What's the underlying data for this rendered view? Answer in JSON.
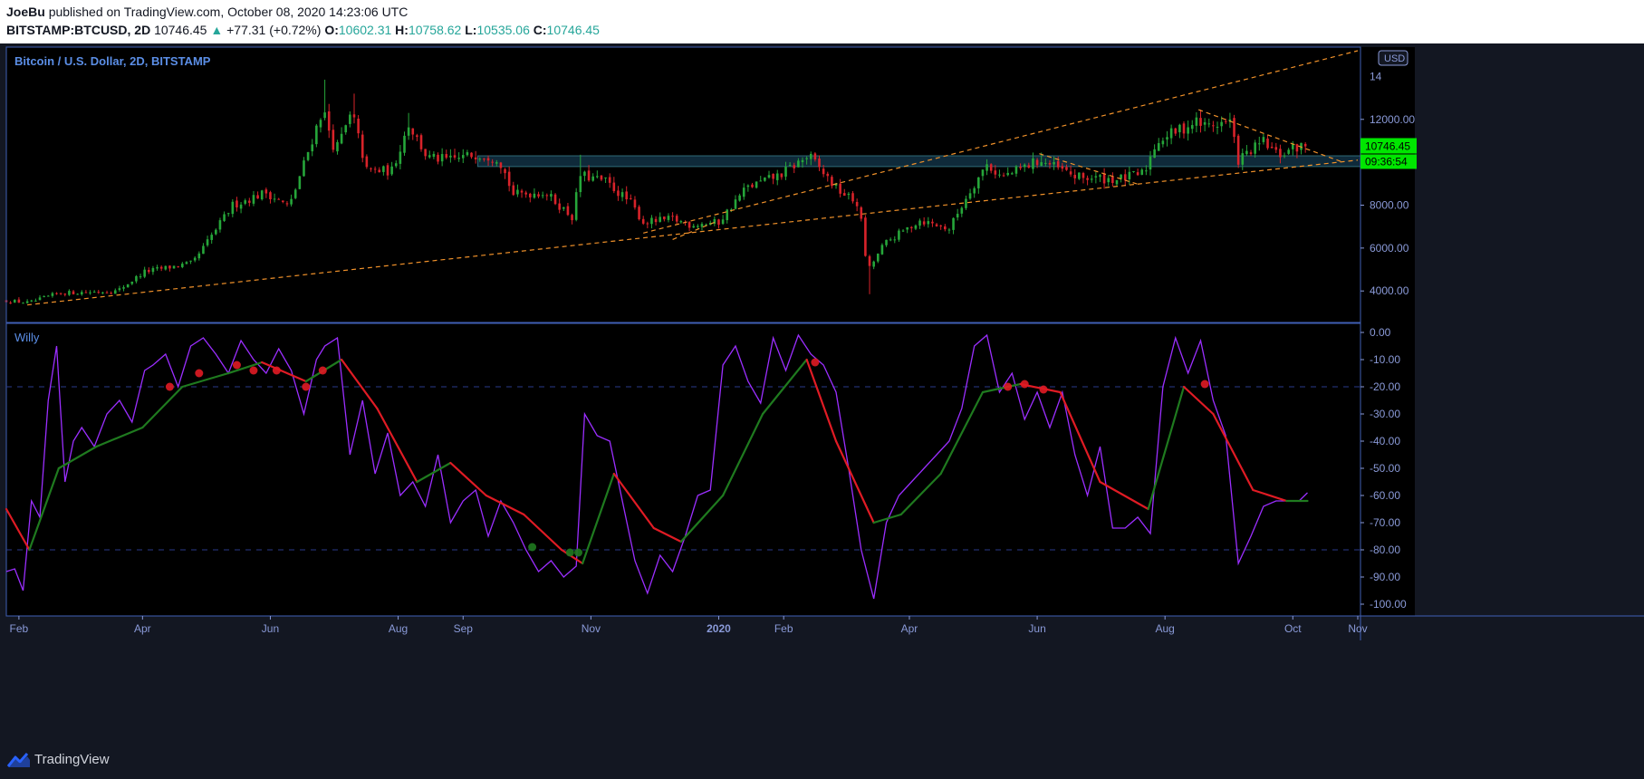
{
  "header": {
    "author": "JoeBu",
    "published": "published on TradingView.com, October 08, 2020 14:23:06 UTC",
    "symbol": "BITSTAMP:BTCUSD, 2D",
    "last": "10746.45",
    "change_arrow": "▲",
    "change": "+77.31 (+0.72%)",
    "o_label": "O:",
    "o": "10602.31",
    "h_label": "H:",
    "h": "10758.62",
    "l_label": "L:",
    "l": "10535.06",
    "c_label": "C:",
    "c": "10746.45"
  },
  "footer": {
    "brand": "TradingView",
    "logo_icon": "tradingview-logo-icon"
  },
  "colors": {
    "background": "#000000",
    "panel_border": "#3f5fb5",
    "axis_text": "#8a9ad8",
    "pane_title": "#5b8ee6",
    "candle_up": "#26a63a",
    "candle_down": "#d8232a",
    "trendline": "#f0912a",
    "zone_fill": "#0f2a3a",
    "zone_border": "#2e6a78",
    "willy_line": "#9b2eff",
    "signal_up": "#1f7a1f",
    "signal_down": "#e01b24",
    "last_price_bg": "#00e600",
    "dashed_level": "#2a3a8a"
  },
  "chart_data": [
    {
      "type": "candlestick",
      "title": "Bitcoin / U.S. Dollar, 2D, BITSTAMP",
      "currency_badge": "USD",
      "last_price_label": "10746.45",
      "countdown_label": "09:36:54",
      "y_ticks": [
        "4000.00",
        "6000.00",
        "8000.00",
        "12000.00"
      ],
      "y_top_partial": "14",
      "ylim": [
        2700,
        15200
      ],
      "x_labels": [
        "Feb",
        "Apr",
        "Jun",
        "Aug",
        "Sep",
        "Nov",
        "2020",
        "Feb",
        "Apr",
        "Jun",
        "Aug",
        "Oct",
        "Nov"
      ],
      "x_label_dates": [
        "2019-02-01",
        "2019-04-01",
        "2019-06-01",
        "2019-08-01",
        "2019-09-01",
        "2019-11-01",
        "2020-01-01",
        "2020-02-01",
        "2020-04-01",
        "2020-06-01",
        "2020-08-01",
        "2020-10-01",
        "2020-11-01"
      ],
      "x_range": [
        "2019-01-26",
        "2020-11-01"
      ],
      "bar_interval_days": 2,
      "price_anchors": [
        [
          "2019-01-26",
          3550
        ],
        [
          "2019-02-06",
          3450
        ],
        [
          "2019-02-20",
          3900
        ],
        [
          "2019-03-20",
          4000
        ],
        [
          "2019-04-02",
          4900
        ],
        [
          "2019-04-25",
          5300
        ],
        [
          "2019-05-14",
          8000
        ],
        [
          "2019-05-30",
          8600
        ],
        [
          "2019-06-10",
          7900
        ],
        [
          "2019-06-26",
          12500
        ],
        [
          "2019-07-02",
          10500
        ],
        [
          "2019-07-10",
          12300
        ],
        [
          "2019-07-17",
          9600
        ],
        [
          "2019-07-29",
          9600
        ],
        [
          "2019-08-06",
          11800
        ],
        [
          "2019-08-15",
          10200
        ],
        [
          "2019-08-26",
          10100
        ],
        [
          "2019-09-08",
          10400
        ],
        [
          "2019-09-18",
          10200
        ],
        [
          "2019-09-25",
          8500
        ],
        [
          "2019-10-10",
          8600
        ],
        [
          "2019-10-23",
          7450
        ],
        [
          "2019-10-27",
          9400
        ],
        [
          "2019-11-08",
          9100
        ],
        [
          "2019-11-20",
          8100
        ],
        [
          "2019-11-26",
          7200
        ],
        [
          "2019-12-10",
          7350
        ],
        [
          "2019-12-18",
          7100
        ],
        [
          "2020-01-01",
          7200
        ],
        [
          "2020-01-14",
          8800
        ],
        [
          "2020-01-30",
          9400
        ],
        [
          "2020-02-13",
          10300
        ],
        [
          "2020-02-26",
          8800
        ],
        [
          "2020-03-08",
          8000
        ],
        [
          "2020-03-12",
          4900
        ],
        [
          "2020-03-20",
          6200
        ],
        [
          "2020-04-06",
          7300
        ],
        [
          "2020-04-20",
          6900
        ],
        [
          "2020-04-30",
          8700
        ],
        [
          "2020-05-08",
          9900
        ],
        [
          "2020-05-15",
          9300
        ],
        [
          "2020-05-20",
          9500
        ],
        [
          "2020-06-02",
          10100
        ],
        [
          "2020-06-20",
          9300
        ],
        [
          "2020-07-10",
          9200
        ],
        [
          "2020-07-22",
          9500
        ],
        [
          "2020-07-28",
          11000
        ],
        [
          "2020-08-16",
          11900
        ],
        [
          "2020-08-20",
          11700
        ],
        [
          "2020-09-01",
          11900
        ],
        [
          "2020-09-05",
          10100
        ],
        [
          "2020-09-17",
          10950
        ],
        [
          "2020-09-24",
          10300
        ],
        [
          "2020-10-02",
          10700
        ],
        [
          "2020-10-08",
          10746
        ]
      ],
      "spikes": [
        {
          "date": "2019-06-26",
          "high": 13850
        },
        {
          "date": "2019-07-10",
          "high": 13200
        },
        {
          "date": "2019-08-06",
          "high": 12300
        },
        {
          "date": "2019-10-26",
          "high": 10350
        },
        {
          "date": "2020-02-13",
          "high": 10500
        },
        {
          "date": "2020-03-12",
          "low": 3850
        },
        {
          "date": "2020-06-02",
          "high": 10450
        },
        {
          "date": "2020-08-17",
          "high": 12450
        }
      ],
      "horizontal_zone": [
        9800,
        10300
      ],
      "trendlines": [
        {
          "from": [
            "2019-02-05",
            3350
          ],
          "to": [
            "2020-11-01",
            10100
          ]
        },
        {
          "from": [
            "2019-11-26",
            6700
          ],
          "to": [
            "2020-11-01",
            15200
          ]
        },
        {
          "from": [
            "2019-12-10",
            6400
          ],
          "to": [
            "2019-12-30",
            7200
          ]
        },
        {
          "from": [
            "2020-06-02",
            10400
          ],
          "to": [
            "2020-07-20",
            8950
          ]
        },
        {
          "from": [
            "2020-08-17",
            12450
          ],
          "to": [
            "2020-10-25",
            10000
          ]
        }
      ]
    },
    {
      "type": "line",
      "title": "Willy",
      "y_ticks": [
        "0.00",
        "-10.00",
        "-20.00",
        "-30.00",
        "-40.00",
        "-50.00",
        "-60.00",
        "-70.00",
        "-80.00",
        "-90.00",
        "-100.00"
      ],
      "ylim": [
        -103,
        2
      ],
      "levels": [
        -20,
        -80
      ],
      "series": [
        {
          "role": "oscillator",
          "x": [
            "2019-01-26",
            "2019-01-30",
            "2019-02-03",
            "2019-02-07",
            "2019-02-11",
            "2019-02-15",
            "2019-02-19",
            "2019-02-23",
            "2019-02-27",
            "2019-03-03",
            "2019-03-09",
            "2019-03-15",
            "2019-03-21",
            "2019-03-27",
            "2019-04-02",
            "2019-04-06",
            "2019-04-12",
            "2019-04-18",
            "2019-04-24",
            "2019-04-30",
            "2019-05-06",
            "2019-05-12",
            "2019-05-18",
            "2019-05-24",
            "2019-05-30",
            "2019-06-05",
            "2019-06-11",
            "2019-06-17",
            "2019-06-23",
            "2019-06-27",
            "2019-07-03",
            "2019-07-09",
            "2019-07-15",
            "2019-07-21",
            "2019-07-27",
            "2019-08-02",
            "2019-08-08",
            "2019-08-14",
            "2019-08-20",
            "2019-08-26",
            "2019-09-01",
            "2019-09-07",
            "2019-09-13",
            "2019-09-19",
            "2019-09-25",
            "2019-10-01",
            "2019-10-07",
            "2019-10-13",
            "2019-10-19",
            "2019-10-25",
            "2019-10-29",
            "2019-11-04",
            "2019-11-10",
            "2019-11-16",
            "2019-11-22",
            "2019-11-28",
            "2019-12-04",
            "2019-12-10",
            "2019-12-16",
            "2019-12-22",
            "2019-12-28",
            "2020-01-03",
            "2020-01-09",
            "2020-01-15",
            "2020-01-21",
            "2020-01-27",
            "2020-02-02",
            "2020-02-08",
            "2020-02-14",
            "2020-02-20",
            "2020-02-26",
            "2020-03-03",
            "2020-03-09",
            "2020-03-15",
            "2020-03-21",
            "2020-03-27",
            "2020-04-02",
            "2020-04-08",
            "2020-04-14",
            "2020-04-20",
            "2020-04-26",
            "2020-05-02",
            "2020-05-08",
            "2020-05-14",
            "2020-05-20",
            "2020-05-26",
            "2020-06-01",
            "2020-06-07",
            "2020-06-13",
            "2020-06-19",
            "2020-06-25",
            "2020-07-01",
            "2020-07-07",
            "2020-07-13",
            "2020-07-19",
            "2020-07-25",
            "2020-07-31",
            "2020-08-06",
            "2020-08-12",
            "2020-08-18",
            "2020-08-24",
            "2020-08-30",
            "2020-09-05",
            "2020-09-11",
            "2020-09-17",
            "2020-09-23",
            "2020-09-29",
            "2020-10-04",
            "2020-10-08"
          ],
          "values": [
            -88,
            -87,
            -95,
            -62,
            -68,
            -25,
            -5,
            -55,
            -40,
            -35,
            -42,
            -30,
            -25,
            -33,
            -14,
            -12,
            -8,
            -20,
            -5,
            -2,
            -8,
            -15,
            -3,
            -10,
            -15,
            -6,
            -14,
            -30,
            -10,
            -5,
            -2,
            -45,
            -25,
            -52,
            -37,
            -60,
            -55,
            -64,
            -45,
            -70,
            -62,
            -58,
            -75,
            -62,
            -70,
            -80,
            -88,
            -84,
            -90,
            -86,
            -30,
            -38,
            -40,
            -62,
            -84,
            -96,
            -82,
            -88,
            -75,
            -60,
            -58,
            -12,
            -5,
            -18,
            -26,
            -2,
            -14,
            -1,
            -8,
            -12,
            -22,
            -50,
            -80,
            -98,
            -70,
            -60,
            -55,
            -50,
            -45,
            -40,
            -28,
            -5,
            -1,
            -22,
            -15,
            -32,
            -22,
            -35,
            -22,
            -45,
            -60,
            -42,
            -72,
            -72,
            -68,
            -74,
            -20,
            -2,
            -15,
            -3,
            -25,
            -38,
            -85,
            -75,
            -64,
            -62,
            -62,
            -62,
            -59
          ]
        },
        {
          "role": "signal",
          "x": [
            "2019-01-26",
            "2019-02-06",
            "2019-02-20",
            "2019-03-10",
            "2019-04-01",
            "2019-04-20",
            "2019-05-12",
            "2019-05-28",
            "2019-06-18",
            "2019-07-05",
            "2019-07-22",
            "2019-08-10",
            "2019-08-26",
            "2019-09-12",
            "2019-09-30",
            "2019-10-18",
            "2019-10-28",
            "2019-11-12",
            "2019-12-01",
            "2019-12-14",
            "2020-01-03",
            "2020-01-22",
            "2020-02-12",
            "2020-02-26",
            "2020-03-15",
            "2020-03-28",
            "2020-04-16",
            "2020-05-06",
            "2020-05-24",
            "2020-06-12",
            "2020-07-01",
            "2020-07-24",
            "2020-08-10",
            "2020-08-24",
            "2020-09-12",
            "2020-09-28",
            "2020-10-08"
          ],
          "values": [
            -65,
            -80,
            -50,
            -42,
            -35,
            -20,
            -15,
            -11,
            -18,
            -10,
            -28,
            -55,
            -48,
            -60,
            -67,
            -80,
            -85,
            -52,
            -72,
            -77,
            -60,
            -30,
            -10,
            -40,
            -70,
            -67,
            -52,
            -22,
            -19,
            -22,
            -55,
            -65,
            -20,
            -30,
            -58,
            -62,
            -62
          ]
        }
      ],
      "cross_markers": [
        {
          "date": "2019-04-14",
          "value": -20,
          "kind": "down"
        },
        {
          "date": "2019-04-28",
          "value": -15,
          "kind": "down"
        },
        {
          "date": "2019-05-16",
          "value": -12,
          "kind": "down"
        },
        {
          "date": "2019-05-24",
          "value": -14,
          "kind": "down"
        },
        {
          "date": "2019-06-04",
          "value": -14,
          "kind": "down"
        },
        {
          "date": "2019-06-18",
          "value": -20,
          "kind": "down"
        },
        {
          "date": "2019-06-26",
          "value": -14,
          "kind": "down"
        },
        {
          "date": "2019-10-04",
          "value": -79,
          "kind": "up"
        },
        {
          "date": "2019-10-22",
          "value": -81,
          "kind": "up"
        },
        {
          "date": "2019-10-26",
          "value": -81,
          "kind": "up"
        },
        {
          "date": "2020-02-16",
          "value": -11,
          "kind": "down"
        },
        {
          "date": "2020-05-18",
          "value": -20,
          "kind": "down"
        },
        {
          "date": "2020-05-26",
          "value": -19,
          "kind": "down"
        },
        {
          "date": "2020-06-04",
          "value": -21,
          "kind": "down"
        },
        {
          "date": "2020-08-20",
          "value": -19,
          "kind": "down"
        }
      ]
    }
  ]
}
